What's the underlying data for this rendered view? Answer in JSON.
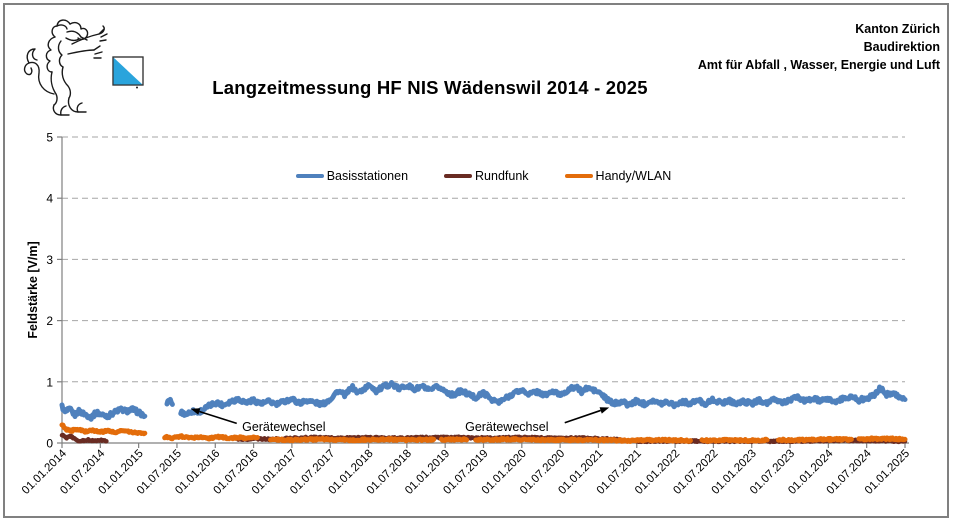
{
  "header": {
    "org_lines": [
      "Kanton Zürich",
      "Baudirektion",
      "Amt für Abfall , Wasser, Energie und Luft"
    ],
    "logo": {
      "name": "kanton-zuerich-lion-logo",
      "flag_blue": "#2AA4DC",
      "flag_white": "#FFFFFF"
    }
  },
  "chart_data": {
    "type": "scatter",
    "title": "Langzeitmessung HF NIS Wädenswil 2014 - 2025",
    "ylabel": "Feldstärke [V/m]",
    "ylim": [
      0,
      5
    ],
    "yticks": [
      0,
      1,
      2,
      3,
      4,
      5
    ],
    "grid": "horizontal-dashed",
    "legend_position": "top-center-inside",
    "xtick_labels": [
      "01.01.2014",
      "01.07.2014",
      "01.01.2015",
      "01.07.2015",
      "01.01.2016",
      "01.07.2016",
      "01.01.2017",
      "01.07.2017",
      "01.01.2018",
      "01.07.2018",
      "01.01.2019",
      "01.07.2019",
      "01.01.2020",
      "01.07.2020",
      "01.01.2021",
      "01.07.2021",
      "01.01.2022",
      "01.07.2022",
      "01.01.2023",
      "01.07.2023",
      "01.01.2024",
      "01.07.2024",
      "01.01.2025"
    ],
    "x_unit": "decimal_year",
    "xlim": [
      2014.0,
      2025.0
    ],
    "series": [
      {
        "name": "Basisstationen",
        "color": "#4F81BD",
        "segments": [
          [
            [
              2014.0,
              0.6
            ],
            [
              2014.04,
              0.5
            ],
            [
              2014.1,
              0.55
            ],
            [
              2014.17,
              0.46
            ],
            [
              2014.22,
              0.52
            ],
            [
              2014.3,
              0.47
            ],
            [
              2014.38,
              0.42
            ],
            [
              2014.45,
              0.5
            ],
            [
              2014.52,
              0.46
            ],
            [
              2014.6,
              0.44
            ],
            [
              2014.68,
              0.5
            ],
            [
              2014.76,
              0.55
            ],
            [
              2014.84,
              0.52
            ],
            [
              2014.92,
              0.55
            ],
            [
              2015.0,
              0.5
            ],
            [
              2015.08,
              0.44
            ]
          ],
          [
            [
              2015.37,
              0.62
            ],
            [
              2015.4,
              0.72
            ],
            [
              2015.44,
              0.63
            ]
          ],
          [
            [
              2015.55,
              0.5
            ],
            [
              2015.62,
              0.47
            ],
            [
              2015.7,
              0.52
            ],
            [
              2015.78,
              0.5
            ],
            [
              2015.86,
              0.56
            ],
            [
              2015.94,
              0.62
            ],
            [
              2016.02,
              0.66
            ],
            [
              2016.1,
              0.62
            ],
            [
              2016.2,
              0.68
            ],
            [
              2016.3,
              0.72
            ],
            [
              2016.4,
              0.66
            ],
            [
              2016.5,
              0.7
            ],
            [
              2016.6,
              0.64
            ],
            [
              2016.7,
              0.68
            ],
            [
              2016.8,
              0.63
            ],
            [
              2016.9,
              0.68
            ],
            [
              2017.0,
              0.72
            ],
            [
              2017.1,
              0.65
            ],
            [
              2017.2,
              0.7
            ],
            [
              2017.3,
              0.66
            ],
            [
              2017.4,
              0.63
            ],
            [
              2017.5,
              0.72
            ],
            [
              2017.6,
              0.85
            ],
            [
              2017.7,
              0.78
            ],
            [
              2017.78,
              0.92
            ],
            [
              2017.86,
              0.82
            ],
            [
              2017.94,
              0.88
            ],
            [
              2018.02,
              0.95
            ],
            [
              2018.1,
              0.85
            ],
            [
              2018.2,
              0.92
            ],
            [
              2018.3,
              0.97
            ],
            [
              2018.4,
              0.88
            ],
            [
              2018.5,
              0.95
            ],
            [
              2018.6,
              0.87
            ],
            [
              2018.7,
              0.93
            ],
            [
              2018.8,
              0.85
            ],
            [
              2018.9,
              0.92
            ],
            [
              2019.0,
              0.85
            ],
            [
              2019.1,
              0.78
            ],
            [
              2019.2,
              0.85
            ],
            [
              2019.3,
              0.8
            ],
            [
              2019.4,
              0.74
            ],
            [
              2019.5,
              0.82
            ],
            [
              2019.6,
              0.72
            ],
            [
              2019.7,
              0.66
            ],
            [
              2019.8,
              0.74
            ],
            [
              2019.9,
              0.82
            ],
            [
              2020.0,
              0.86
            ],
            [
              2020.1,
              0.8
            ],
            [
              2020.2,
              0.84
            ],
            [
              2020.3,
              0.78
            ],
            [
              2020.4,
              0.84
            ],
            [
              2020.5,
              0.79
            ],
            [
              2020.6,
              0.86
            ],
            [
              2020.7,
              0.92
            ],
            [
              2020.78,
              0.84
            ],
            [
              2020.86,
              0.9
            ],
            [
              2020.94,
              0.86
            ],
            [
              2021.02,
              0.82
            ],
            [
              2021.1,
              0.72
            ],
            [
              2021.2,
              0.64
            ],
            [
              2021.3,
              0.68
            ],
            [
              2021.4,
              0.62
            ],
            [
              2021.5,
              0.69
            ],
            [
              2021.6,
              0.64
            ],
            [
              2021.7,
              0.7
            ],
            [
              2021.8,
              0.64
            ],
            [
              2021.9,
              0.68
            ],
            [
              2022.0,
              0.62
            ],
            [
              2022.1,
              0.68
            ],
            [
              2022.2,
              0.64
            ],
            [
              2022.3,
              0.7
            ],
            [
              2022.4,
              0.64
            ],
            [
              2022.5,
              0.71
            ],
            [
              2022.6,
              0.65
            ],
            [
              2022.7,
              0.7
            ],
            [
              2022.8,
              0.64
            ],
            [
              2022.9,
              0.68
            ],
            [
              2023.0,
              0.64
            ],
            [
              2023.1,
              0.7
            ],
            [
              2023.2,
              0.65
            ],
            [
              2023.3,
              0.71
            ],
            [
              2023.4,
              0.66
            ],
            [
              2023.5,
              0.7
            ],
            [
              2023.6,
              0.75
            ],
            [
              2023.7,
              0.68
            ],
            [
              2023.8,
              0.73
            ],
            [
              2023.9,
              0.68
            ],
            [
              2024.0,
              0.72
            ],
            [
              2024.1,
              0.67
            ],
            [
              2024.2,
              0.73
            ],
            [
              2024.3,
              0.76
            ],
            [
              2024.4,
              0.7
            ],
            [
              2024.5,
              0.73
            ],
            [
              2024.6,
              0.78
            ],
            [
              2024.68,
              0.9
            ],
            [
              2024.76,
              0.79
            ],
            [
              2024.84,
              0.83
            ],
            [
              2024.92,
              0.76
            ],
            [
              2025.0,
              0.71
            ]
          ]
        ]
      },
      {
        "name": "Rundfunk",
        "color": "#692B22",
        "segments": [
          [
            [
              2014.0,
              0.13
            ],
            [
              2014.06,
              0.08
            ],
            [
              2014.12,
              0.12
            ],
            [
              2014.18,
              0.05
            ],
            [
              2014.25,
              0.03
            ],
            [
              2014.33,
              0.05
            ],
            [
              2014.42,
              0.04
            ],
            [
              2014.5,
              0.05
            ],
            [
              2014.58,
              0.03
            ]
          ],
          [
            [
              2016.3,
              0.06
            ],
            [
              2016.5,
              0.07
            ],
            [
              2016.75,
              0.06
            ],
            [
              2017.0,
              0.08
            ],
            [
              2017.3,
              0.09
            ],
            [
              2017.6,
              0.08
            ],
            [
              2018.0,
              0.09
            ],
            [
              2018.4,
              0.08
            ],
            [
              2018.8,
              0.09
            ],
            [
              2019.2,
              0.09
            ],
            [
              2019.6,
              0.08
            ],
            [
              2020.0,
              0.09
            ],
            [
              2020.4,
              0.08
            ],
            [
              2020.8,
              0.08
            ],
            [
              2021.1,
              0.07
            ],
            [
              2021.3,
              0.05
            ]
          ],
          [
            [
              2021.5,
              0.03
            ],
            [
              2022.0,
              0.03
            ],
            [
              2022.5,
              0.03
            ],
            [
              2023.0,
              0.03
            ],
            [
              2023.5,
              0.03
            ],
            [
              2024.0,
              0.04
            ],
            [
              2024.5,
              0.04
            ],
            [
              2025.0,
              0.03
            ]
          ]
        ]
      },
      {
        "name": "Handy/WLAN",
        "color": "#E36C0A",
        "segments": [
          [
            [
              2014.0,
              0.3
            ],
            [
              2014.05,
              0.22
            ],
            [
              2014.12,
              0.2
            ],
            [
              2014.2,
              0.23
            ],
            [
              2014.3,
              0.19
            ],
            [
              2014.4,
              0.21
            ],
            [
              2014.5,
              0.18
            ],
            [
              2014.6,
              0.2
            ],
            [
              2014.7,
              0.18
            ],
            [
              2014.8,
              0.2
            ],
            [
              2014.9,
              0.18
            ],
            [
              2015.0,
              0.17
            ],
            [
              2015.08,
              0.16
            ]
          ],
          [
            [
              2015.34,
              0.1
            ],
            [
              2015.45,
              0.08
            ],
            [
              2015.56,
              0.11
            ],
            [
              2015.68,
              0.08
            ],
            [
              2015.8,
              0.1
            ],
            [
              2015.92,
              0.08
            ],
            [
              2016.05,
              0.1
            ],
            [
              2016.18,
              0.08
            ],
            [
              2016.3,
              0.09
            ],
            [
              2016.42,
              0.08
            ],
            [
              2016.55,
              0.09
            ]
          ],
          [
            [
              2016.72,
              0.06
            ],
            [
              2017.0,
              0.05
            ],
            [
              2017.4,
              0.06
            ],
            [
              2017.8,
              0.05
            ],
            [
              2018.2,
              0.06
            ],
            [
              2018.6,
              0.05
            ],
            [
              2018.85,
              0.06
            ]
          ],
          [
            [
              2018.95,
              0.05
            ],
            [
              2019.2,
              0.06
            ],
            [
              2019.28,
              0.05
            ]
          ],
          [
            [
              2019.4,
              0.05
            ],
            [
              2019.8,
              0.06
            ],
            [
              2020.2,
              0.05
            ],
            [
              2020.6,
              0.05
            ],
            [
              2021.0,
              0.05
            ],
            [
              2021.4,
              0.04
            ],
            [
              2021.8,
              0.05
            ],
            [
              2022.2,
              0.04
            ]
          ],
          [
            [
              2022.35,
              0.04
            ],
            [
              2022.7,
              0.05
            ],
            [
              2023.0,
              0.04
            ],
            [
              2023.2,
              0.05
            ]
          ],
          [
            [
              2023.35,
              0.05
            ],
            [
              2023.7,
              0.05
            ],
            [
              2024.0,
              0.06
            ],
            [
              2024.3,
              0.06
            ]
          ],
          [
            [
              2024.4,
              0.06
            ],
            [
              2024.6,
              0.07
            ],
            [
              2024.8,
              0.07
            ],
            [
              2025.0,
              0.06
            ]
          ]
        ]
      }
    ],
    "annotations": [
      {
        "text": "Gerätewechsel",
        "text_t": 2016.35,
        "text_v": 0.2,
        "arrow_from": [
          2016.28,
          0.32
        ],
        "arrow_to": [
          2015.68,
          0.56
        ]
      },
      {
        "text": "Gerätewechsel",
        "text_t": 2019.26,
        "text_v": 0.2,
        "arrow_from": [
          2020.56,
          0.33
        ],
        "arrow_to": [
          2021.14,
          0.58
        ]
      }
    ]
  }
}
